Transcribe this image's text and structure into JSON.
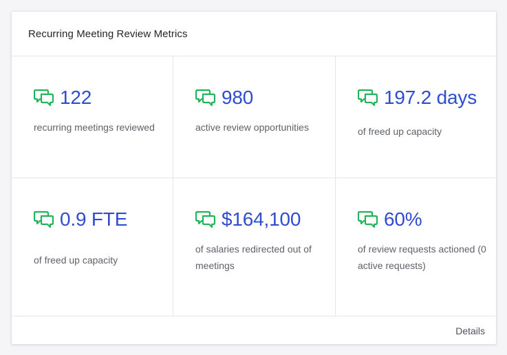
{
  "card": {
    "title": "Recurring Meeting Review Metrics",
    "details_label": "Details"
  },
  "colors": {
    "accent": "#2f4cd1",
    "icon_green": "#21b35a"
  },
  "metrics": [
    {
      "value": "122",
      "description": "recurring meetings reviewed",
      "icon": "chat-bubbles-icon"
    },
    {
      "value": "980",
      "description": "active review opportunities",
      "icon": "chat-bubbles-icon"
    },
    {
      "value": "197.2 days",
      "description": "of freed up capacity",
      "icon": "chat-bubbles-icon"
    },
    {
      "value": "0.9 FTE",
      "description": "of freed up capacity",
      "icon": "chat-bubbles-icon"
    },
    {
      "value": "$164,100",
      "description": "of salaries redirected out of meetings",
      "icon": "chat-bubbles-icon"
    },
    {
      "value": "60%",
      "description": "of review requests actioned (0 active requests)",
      "icon": "chat-bubbles-icon"
    }
  ]
}
